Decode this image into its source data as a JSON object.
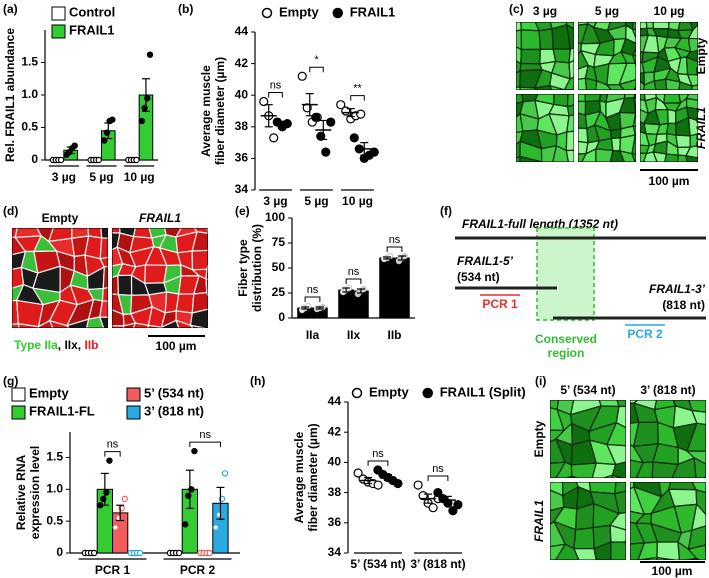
{
  "chart_data": [
    {
      "type": "bar",
      "panel": "(a)",
      "ylabel": "Rel. FRAIL1 abundance",
      "categories": [
        "3 µg",
        "5 µg",
        "10 µg"
      ],
      "ylim": [
        0,
        2
      ],
      "yticks": [
        0,
        0.5,
        {
          "value": 1,
          "label": "1.0"
        },
        1.5
      ],
      "legend": "top-left",
      "category_brackets": true,
      "series": [
        {
          "name": "Control",
          "color": "#ffffff",
          "marker": "open",
          "values": [
            0,
            0,
            0
          ],
          "errors": [
            null,
            null,
            null
          ],
          "points": [
            [
              0,
              0,
              0,
              0
            ],
            [
              0,
              0,
              0,
              0
            ],
            [
              0,
              0,
              0,
              0
            ]
          ]
        },
        {
          "name": "FRAIL1",
          "color": "#33cc33",
          "marker": "filled",
          "values": [
            0.15,
            0.45,
            1.0
          ],
          "errors": [
            0.05,
            0.12,
            0.25
          ],
          "points": [
            [
              0.08,
              0.12,
              0.18,
              0.22
            ],
            [
              0.3,
              0.42,
              0.6,
              0.62
            ],
            [
              0.6,
              0.8,
              0.95,
              1.62
            ]
          ]
        }
      ]
    },
    {
      "type": "dot",
      "panel": "(b)",
      "ylabel": [
        "Average muscle",
        "fiber diameter (µm)"
      ],
      "categories": [
        "3 µg",
        "5 µg",
        "10 µg"
      ],
      "ylim": [
        34,
        44
      ],
      "yticks": [
        34,
        36,
        38,
        40,
        42,
        44
      ],
      "legend": "top",
      "category_brackets": true,
      "series": [
        {
          "name": "Empty",
          "color": "#000000",
          "marker": "open",
          "values": [
            38.7,
            39.4,
            38.9
          ],
          "errors": [
            0.7,
            0.7,
            0.25
          ],
          "points": [
            [
              39.6,
              38.7,
              37.3
            ],
            [
              41.2,
              39.2,
              38.3,
              38.6
            ],
            [
              39.4,
              39.0,
              38.5,
              38.7,
              38.8
            ]
          ]
        },
        {
          "name": "FRAIL1",
          "color": "#000000",
          "marker": "filled",
          "values": [
            38.2,
            37.8,
            36.6
          ],
          "errors": [
            0.15,
            0.6,
            0.4
          ],
          "points": [
            [
              38.3,
              38.0,
              38.2
            ],
            [
              38.6,
              37.4,
              36.4,
              38.3
            ],
            [
              37.3,
              36.6,
              36.0,
              36.2,
              36.4
            ]
          ]
        }
      ],
      "annotations": [
        {
          "text": "ns",
          "category": 0
        },
        {
          "text": "*",
          "category": 1
        },
        {
          "text": "**",
          "category": 2
        }
      ]
    },
    {
      "type": "bar",
      "panel": "(e)",
      "ylabel": [
        "Fiber type",
        "distribution (%)"
      ],
      "categories": [
        "IIa",
        "IIx",
        "IIb"
      ],
      "ylim": [
        0,
        100
      ],
      "yticks": [
        0,
        25,
        50,
        75,
        100
      ],
      "point_color": "#cccccc",
      "series": [
        {
          "color": "#000000",
          "marker": "open",
          "values": [
            10,
            28,
            60
          ],
          "errors": [
            1,
            2,
            1
          ],
          "points": [
            [
              8,
              10,
              12
            ],
            [
              26,
              28,
              30
            ],
            [
              59,
              60,
              62
            ]
          ]
        },
        {
          "color": "#000000",
          "marker": "filled",
          "values": [
            10,
            27,
            60
          ],
          "errors": [
            1,
            2,
            2
          ],
          "points": [
            [
              9,
              10,
              11
            ],
            [
              24,
              27,
              29
            ],
            [
              57,
              60,
              62
            ]
          ]
        }
      ],
      "annotations": [
        {
          "text": "ns",
          "category": 0
        },
        {
          "text": "ns",
          "category": 1
        },
        {
          "text": "ns",
          "category": 2
        }
      ]
    },
    {
      "type": "bar",
      "panel": "(g)",
      "ylabel": [
        "Relative RNA",
        "expression level"
      ],
      "categories": [
        "PCR 1",
        "PCR 2"
      ],
      "ylim": [
        0,
        1.9
      ],
      "yticks": [
        0,
        0.5,
        {
          "value": 1,
          "label": "1.0"
        },
        1.5
      ],
      "legend": "top-columns",
      "category_brackets": true,
      "series": [
        {
          "name": "Empty",
          "color": "#ffffff",
          "marker": "open",
          "values": [
            0,
            0
          ],
          "errors": [
            null,
            null
          ],
          "points": [
            [
              0,
              0,
              0,
              0
            ],
            [
              0,
              0,
              0,
              0
            ]
          ]
        },
        {
          "name": "FRAIL1-FL",
          "color": "#33cc33",
          "marker": "filled",
          "values": [
            1.0,
            1.0
          ],
          "errors": [
            0.25,
            0.3
          ],
          "points": [
            [
              0.75,
              0.85,
              0.95,
              1.45
            ],
            [
              0.45,
              0.9,
              1.0,
              1.6
            ]
          ]
        },
        {
          "name": "5’ (534 nt)",
          "color": "#f25c5c",
          "marker": "open",
          "values": [
            0.63,
            0
          ],
          "errors": [
            0.12,
            null
          ],
          "points": [
            [
              0.4,
              0.55,
              0.7,
              0.85
            ],
            [
              0,
              0,
              0,
              0
            ]
          ]
        },
        {
          "name": "3’ (818 nt)",
          "color": "#29abe2",
          "marker": "open",
          "values": [
            0,
            0.78
          ],
          "errors": [
            null,
            0.25
          ],
          "points": [
            [
              0,
              0,
              0,
              0
            ],
            [
              0.4,
              0.6,
              0.85,
              1.25
            ]
          ]
        }
      ],
      "annotations": [
        {
          "text": "ns",
          "category": 0
        },
        {
          "text": "ns",
          "category": 1
        }
      ]
    },
    {
      "type": "dot",
      "panel": "(h)",
      "ylabel": [
        "Average muscle",
        "fiber diameter (µm)"
      ],
      "categories": [
        "5’ (534 nt)",
        "3’ (818 nt)"
      ],
      "ylim": [
        34,
        44
      ],
      "yticks": [
        34,
        36,
        38,
        40,
        42,
        44
      ],
      "legend": "top",
      "category_brackets": true,
      "series": [
        {
          "name": "Empty",
          "color": "#000000",
          "marker": "open",
          "values": [
            38.8,
            37.6
          ],
          "errors": [
            0.2,
            0.3
          ],
          "points": [
            [
              39.3,
              38.9,
              38.7,
              38.6,
              38.5
            ],
            [
              38.5,
              37.8,
              37.3,
              37.0,
              37.6
            ]
          ]
        },
        {
          "name": "FRAIL1 (Split)",
          "color": "#000000",
          "marker": "filled",
          "values": [
            39.0,
            37.5
          ],
          "errors": [
            0.2,
            0.25
          ],
          "points": [
            [
              39.5,
              39.2,
              39.0,
              38.8,
              38.6
            ],
            [
              38.0,
              37.6,
              37.3,
              36.8,
              37.2
            ]
          ]
        }
      ],
      "annotations": [
        {
          "text": "ns",
          "category": 0
        },
        {
          "text": "ns",
          "category": 1
        }
      ]
    }
  ],
  "micrographs": [
    {
      "panel": "(c)",
      "columns": [
        "3 µg",
        "5 µg",
        "10 µg"
      ],
      "rows": [
        "Empty",
        "FRAIL1"
      ],
      "scale_bar": "100 µm"
    },
    {
      "panel": "(d)",
      "columns": [
        "Empty",
        "FRAIL1"
      ],
      "legend": [
        "Type IIa",
        ", IIx, ",
        "IIb"
      ],
      "scale_bar": "100 µm"
    },
    {
      "panel": "(i)",
      "columns": [
        "5’ (534 nt)",
        "3’ (818 nt)"
      ],
      "rows": [
        "Empty",
        "FRAIL1"
      ],
      "scale_bar": "100 µm"
    }
  ],
  "diagram": {
    "panel": "(f)",
    "full_length": "FRAIL1-full length (1352 nt)",
    "five_prime": [
      "FRAIL1-5’",
      "(534 nt)"
    ],
    "three_prime": [
      "FRAIL1-3’",
      "(818 nt)"
    ],
    "pcr1": "PCR 1",
    "pcr2": "PCR 2",
    "conserved": [
      "Conserved",
      "region"
    ]
  }
}
